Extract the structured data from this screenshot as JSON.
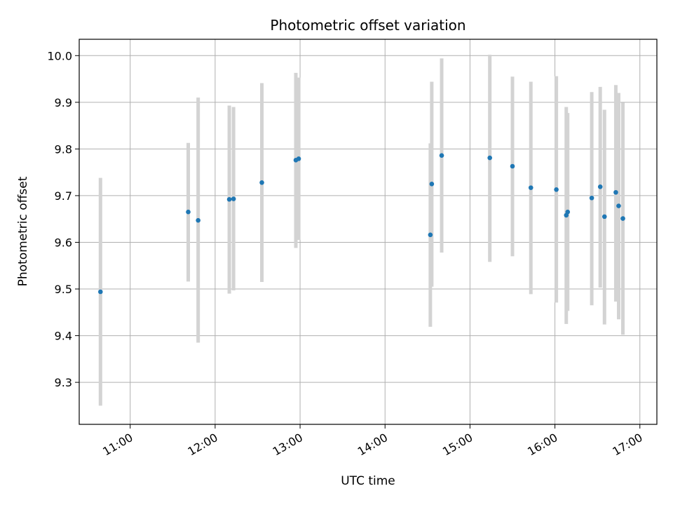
{
  "chart_data": {
    "type": "scatter",
    "title": "Photometric offset variation",
    "xlabel": "UTC time",
    "ylabel": "Photometric offset",
    "x_axis_kind": "time",
    "xlim": [
      "10:24",
      "17:12"
    ],
    "ylim": [
      9.21,
      10.035
    ],
    "x_ticks": [
      "11:00",
      "12:00",
      "13:00",
      "14:00",
      "15:00",
      "16:00",
      "17:00"
    ],
    "y_ticks": [
      9.3,
      9.4,
      9.5,
      9.6,
      9.7,
      9.8,
      9.9,
      10.0
    ],
    "y_tick_labels": [
      "9.3",
      "9.4",
      "9.5",
      "9.6",
      "9.7",
      "9.8",
      "9.9",
      "10.0"
    ],
    "grid": true,
    "marker_color": "#1f77b4",
    "errorbar_color": "#d3d3d3",
    "points": [
      {
        "x": "10:39",
        "y": 9.494,
        "low": 9.25,
        "high": 9.738
      },
      {
        "x": "11:41",
        "y": 9.665,
        "low": 9.516,
        "high": 9.813
      },
      {
        "x": "11:48",
        "y": 9.647,
        "low": 9.385,
        "high": 9.91
      },
      {
        "x": "12:10",
        "y": 9.692,
        "low": 9.49,
        "high": 9.893
      },
      {
        "x": "12:13",
        "y": 9.693,
        "low": 9.497,
        "high": 9.89
      },
      {
        "x": "12:33",
        "y": 9.728,
        "low": 9.515,
        "high": 9.941
      },
      {
        "x": "12:57",
        "y": 9.776,
        "low": 9.588,
        "high": 9.963
      },
      {
        "x": "12:59",
        "y": 9.779,
        "low": 9.605,
        "high": 9.953
      },
      {
        "x": "14:32",
        "y": 9.616,
        "low": 9.419,
        "high": 9.812
      },
      {
        "x": "14:33",
        "y": 9.725,
        "low": 9.505,
        "high": 9.944
      },
      {
        "x": "14:40",
        "y": 9.786,
        "low": 9.578,
        "high": 9.994
      },
      {
        "x": "15:14",
        "y": 9.781,
        "low": 9.558,
        "high": 10.002
      },
      {
        "x": "15:30",
        "y": 9.763,
        "low": 9.57,
        "high": 9.955
      },
      {
        "x": "15:43",
        "y": 9.717,
        "low": 9.489,
        "high": 9.944
      },
      {
        "x": "16:01",
        "y": 9.713,
        "low": 9.471,
        "high": 9.956
      },
      {
        "x": "16:08",
        "y": 9.658,
        "low": 9.425,
        "high": 9.89
      },
      {
        "x": "16:09",
        "y": 9.665,
        "low": 9.453,
        "high": 9.877
      },
      {
        "x": "16:26",
        "y": 9.695,
        "low": 9.465,
        "high": 9.922
      },
      {
        "x": "16:32",
        "y": 9.719,
        "low": 9.503,
        "high": 9.933
      },
      {
        "x": "16:35",
        "y": 9.655,
        "low": 9.424,
        "high": 9.884
      },
      {
        "x": "16:43",
        "y": 9.707,
        "low": 9.473,
        "high": 9.937
      },
      {
        "x": "16:45",
        "y": 9.678,
        "low": 9.435,
        "high": 9.92
      },
      {
        "x": "16:48",
        "y": 9.651,
        "low": 9.402,
        "high": 9.899
      }
    ]
  }
}
